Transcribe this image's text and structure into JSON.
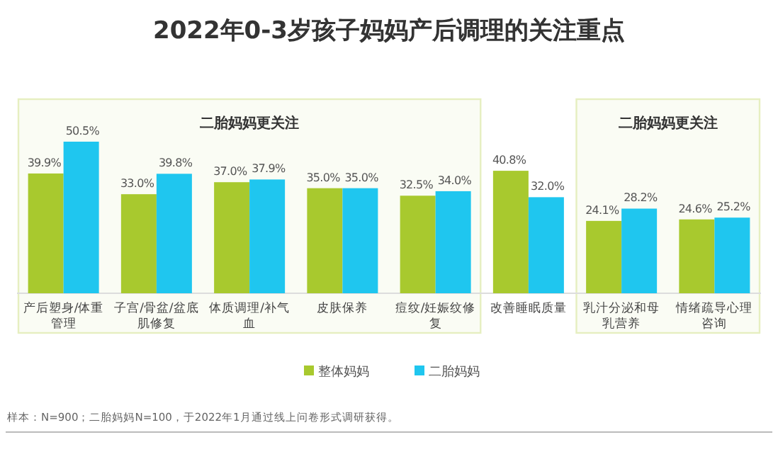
{
  "chart_data": {
    "type": "bar",
    "title": "2022年0-3岁孩子妈妈产后调理的关注重点",
    "categories": [
      "产后塑身/体重管理",
      "子宫/骨盆/盆底肌修复",
      "体质调理/补气血",
      "皮肤保养",
      "痘纹/妊娠纹修复",
      "改善睡眠质量",
      "乳汁分泌和母乳营养",
      "情绪疏导心理咨询"
    ],
    "series": [
      {
        "name": "整体妈妈",
        "color": "#a8c92e",
        "values": [
          39.9,
          33.0,
          37.0,
          35.0,
          32.5,
          40.8,
          24.1,
          24.6
        ],
        "value_labels": [
          "39.9%",
          "33.0%",
          "37.0%",
          "35.0%",
          "32.5%",
          "40.8%",
          "24.1%",
          "24.6%"
        ]
      },
      {
        "name": "二胎妈妈",
        "color": "#1fc6ef",
        "values": [
          50.5,
          39.8,
          37.9,
          35.0,
          34.0,
          32.0,
          28.2,
          25.2
        ],
        "value_labels": [
          "50.5%",
          "39.8%",
          "37.9%",
          "35.0%",
          "34.0%",
          "32.0%",
          "28.2%",
          "25.2%"
        ]
      }
    ],
    "bands": [
      {
        "axis": "x",
        "from": "产后塑身/体重管理",
        "to": "痘纹/妊娠纹修复",
        "label": "二胎妈妈更关注",
        "color": "#e6efc0"
      },
      {
        "axis": "x",
        "from": "乳汁分泌和母乳营养",
        "to": "情绪疏导心理咨询",
        "label": "二胎妈妈更关注",
        "color": "#e6efc0"
      }
    ],
    "legend": "bottom",
    "annotations": [
      "样本：N=900；二胎妈妈N=100，于2022年1月通过线上问卷形式调研获得。"
    ]
  }
}
